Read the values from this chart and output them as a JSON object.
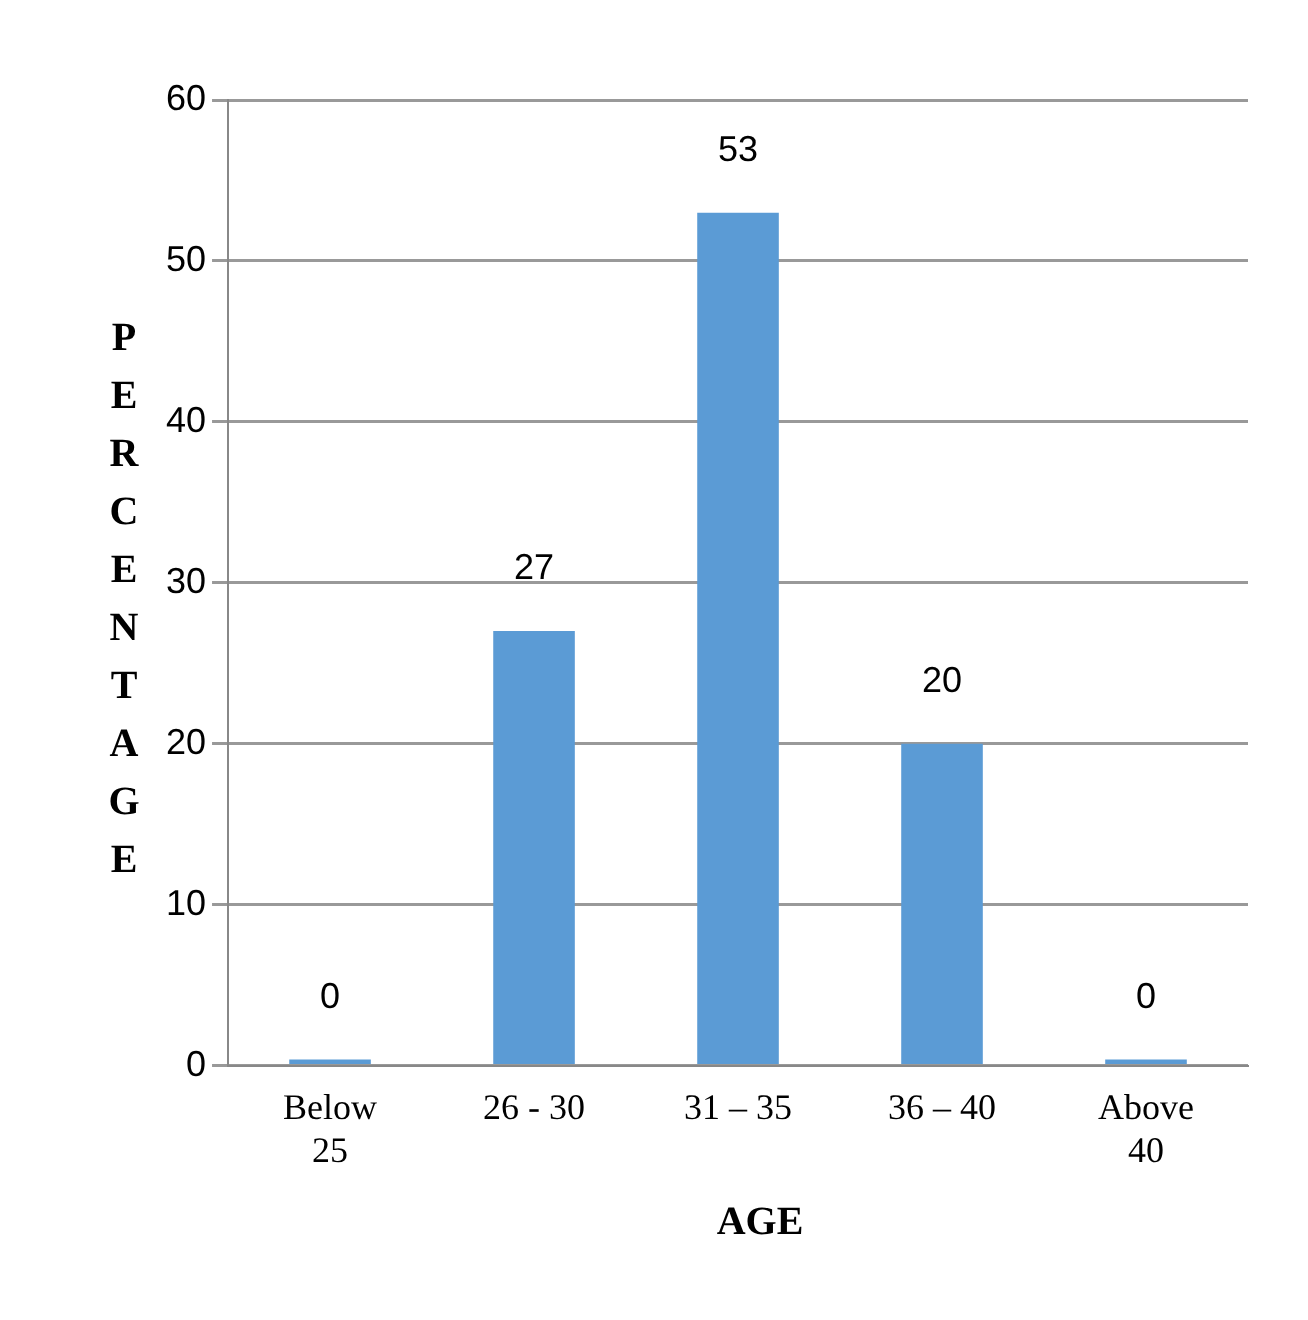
{
  "chart_data": {
    "type": "bar",
    "categories": [
      "Below 25",
      "26 - 30",
      "31 – 35",
      "36 – 40",
      "Above 40"
    ],
    "values": [
      0,
      27,
      53,
      20,
      0
    ],
    "color": "#5b9bd5",
    "ylim": [
      0,
      60
    ],
    "yticks": [
      0,
      10,
      20,
      30,
      40,
      50,
      60
    ],
    "grid": "y",
    "data_labels": true,
    "legend": false,
    "xlabel": "AGE",
    "ylabel": "PERCENTAGE"
  }
}
